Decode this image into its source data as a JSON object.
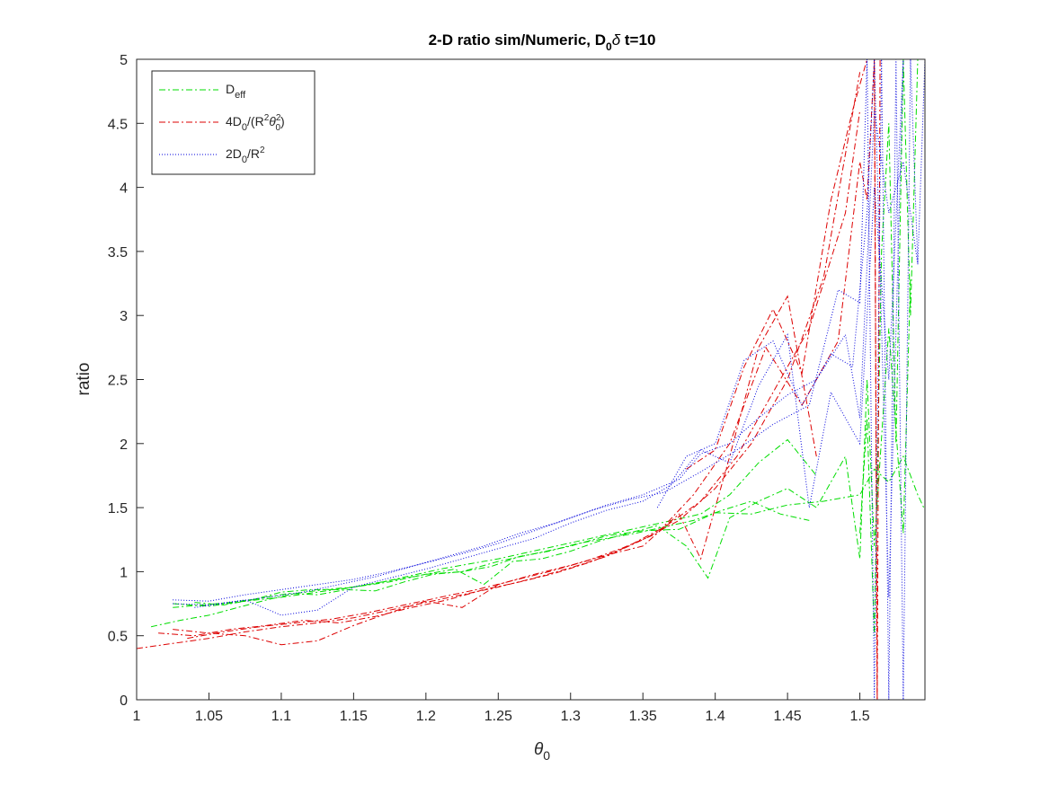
{
  "chart_data": {
    "type": "line",
    "title": {
      "main": "2-D ratio sim/Numeric, D",
      "sub": "0",
      "suffix_symbol": "δ",
      "suffix_text": " t=10"
    },
    "xlabel": {
      "symbol": "θ",
      "sub": "0"
    },
    "ylabel": "ratio",
    "xlim": [
      1,
      1.545
    ],
    "ylim": [
      0,
      5
    ],
    "xticks": [
      "1",
      "1.05",
      "1.1",
      "1.15",
      "1.2",
      "1.25",
      "1.3",
      "1.35",
      "1.4",
      "1.45",
      "1.5"
    ],
    "yticks": [
      "0",
      "0.5",
      "1",
      "1.5",
      "2",
      "2.5",
      "3",
      "3.5",
      "4",
      "4.5",
      "5"
    ],
    "legend_position": "top-left",
    "grid": false,
    "legend": [
      {
        "label_main": "D",
        "label_sub": "eff",
        "color": "#00dd00",
        "dash": "dashdot"
      },
      {
        "label_parts": [
          "4D",
          "0",
          "/(R",
          "2",
          "θ",
          "2",
          "0",
          ")"
        ],
        "color": "#dd0000",
        "dash": "dashdot"
      },
      {
        "label_parts": [
          "2D",
          "0",
          "/R",
          "2"
        ],
        "color": "#0000dd",
        "dash": "dotted"
      }
    ],
    "series": [
      {
        "group": "D_eff",
        "color": "#00dd00",
        "dash": "dashdot",
        "x": [
          1.01,
          1.03,
          1.05,
          1.07,
          1.09,
          1.11,
          1.13,
          1.15,
          1.17,
          1.19,
          1.21,
          1.23,
          1.25,
          1.27,
          1.29,
          1.31,
          1.33,
          1.35,
          1.37,
          1.39,
          1.41,
          1.43,
          1.45,
          1.47
        ],
        "y": [
          0.57,
          0.62,
          0.66,
          0.72,
          0.78,
          0.83,
          0.86,
          0.88,
          0.92,
          0.97,
          1.02,
          1.06,
          1.1,
          1.15,
          1.2,
          1.25,
          1.3,
          1.35,
          1.4,
          1.45,
          1.6,
          1.85,
          2.03,
          1.75
        ]
      },
      {
        "group": "D_eff",
        "color": "#00dd00",
        "dash": "dashdot",
        "x": [
          1.025,
          1.045,
          1.065,
          1.085,
          1.105,
          1.125,
          1.145,
          1.165,
          1.185,
          1.205,
          1.225,
          1.245,
          1.265,
          1.285,
          1.305,
          1.325,
          1.345,
          1.365,
          1.385,
          1.405,
          1.425,
          1.445,
          1.465
        ],
        "y": [
          0.72,
          0.74,
          0.76,
          0.79,
          0.83,
          0.82,
          0.86,
          0.85,
          0.92,
          0.98,
          1.0,
          1.04,
          1.12,
          1.16,
          1.22,
          1.26,
          1.3,
          1.35,
          1.4,
          1.48,
          1.55,
          1.45,
          1.4
        ]
      },
      {
        "group": "D_eff",
        "color": "#00dd00",
        "dash": "dashdot",
        "x": [
          1.025,
          1.05,
          1.075,
          1.1,
          1.125,
          1.15,
          1.175,
          1.2,
          1.225,
          1.25,
          1.275,
          1.3,
          1.325,
          1.35,
          1.375,
          1.4,
          1.425,
          1.45,
          1.475,
          1.5,
          1.51,
          1.52,
          1.53,
          1.54,
          1.545
        ],
        "y": [
          0.75,
          0.73,
          0.77,
          0.8,
          0.84,
          0.88,
          0.92,
          0.98,
          1.0,
          1.08,
          1.14,
          1.2,
          1.28,
          1.32,
          1.33,
          1.46,
          1.45,
          1.52,
          1.55,
          1.6,
          1.8,
          1.7,
          1.9,
          1.6,
          1.48
        ]
      },
      {
        "group": "D_eff",
        "color": "#00dd00",
        "dash": "dashdot",
        "x": [
          1.04,
          1.06,
          1.08,
          1.1,
          1.12,
          1.14,
          1.16,
          1.18,
          1.2,
          1.22,
          1.24,
          1.26,
          1.28,
          1.3,
          1.32,
          1.34,
          1.36,
          1.38,
          1.395,
          1.41,
          1.43,
          1.45,
          1.47,
          1.49,
          1.5,
          1.505,
          1.51,
          1.52,
          1.53,
          1.535
        ],
        "y": [
          0.76,
          0.74,
          0.78,
          0.84,
          0.86,
          0.86,
          0.9,
          0.94,
          0.98,
          1.02,
          0.9,
          1.08,
          1.1,
          1.16,
          1.24,
          1.3,
          1.36,
          1.2,
          0.95,
          1.42,
          1.55,
          1.65,
          1.5,
          1.9,
          1.1,
          2.5,
          1.2,
          2.9,
          1.3,
          3.3
        ]
      },
      {
        "group": "D_eff",
        "color": "#00dd00",
        "dash": "dashdot",
        "x": [
          1.5,
          1.505,
          1.51,
          1.515,
          1.52,
          1.525,
          1.53,
          1.535,
          1.54
        ],
        "y": [
          1.3,
          2.2,
          0.5,
          3.5,
          4.5,
          2.0,
          5.0,
          3.0,
          5.0
        ]
      },
      {
        "group": "4D0/(R2theta02)",
        "color": "#dd0000",
        "dash": "dashdot",
        "x": [
          1.0,
          1.025,
          1.05,
          1.075,
          1.1,
          1.125,
          1.15,
          1.175,
          1.2,
          1.225,
          1.25,
          1.275,
          1.3,
          1.325,
          1.35,
          1.375,
          1.4,
          1.425,
          1.45,
          1.475,
          1.5
        ],
        "y": [
          0.4,
          0.44,
          0.48,
          0.53,
          0.57,
          0.6,
          0.64,
          0.7,
          0.76,
          0.82,
          0.88,
          0.95,
          1.03,
          1.12,
          1.25,
          1.4,
          1.65,
          2.0,
          2.5,
          3.3,
          4.9
        ]
      },
      {
        "group": "4D0/(R2theta02)",
        "color": "#dd0000",
        "dash": "dashdot",
        "x": [
          1.015,
          1.04,
          1.065,
          1.09,
          1.115,
          1.14,
          1.165,
          1.19,
          1.215,
          1.24,
          1.265,
          1.29,
          1.315,
          1.34,
          1.365,
          1.39,
          1.415,
          1.44,
          1.465,
          1.49,
          1.5
        ],
        "y": [
          0.52,
          0.5,
          0.55,
          0.58,
          0.62,
          0.6,
          0.65,
          0.72,
          0.78,
          0.86,
          0.92,
          0.99,
          1.08,
          1.2,
          1.35,
          1.55,
          1.9,
          2.4,
          2.9,
          3.8,
          4.6
        ]
      },
      {
        "group": "4D0/(R2theta02)",
        "color": "#dd0000",
        "dash": "dashdot",
        "x": [
          1.025,
          1.05,
          1.075,
          1.1,
          1.125,
          1.15,
          1.175,
          1.2,
          1.225,
          1.25,
          1.275,
          1.3,
          1.325,
          1.35,
          1.375,
          1.39,
          1.41,
          1.43,
          1.45,
          1.47
        ],
        "y": [
          0.55,
          0.52,
          0.5,
          0.43,
          0.46,
          0.58,
          0.68,
          0.77,
          0.72,
          0.9,
          0.98,
          1.05,
          1.13,
          1.2,
          1.45,
          1.1,
          1.9,
          2.75,
          3.15,
          1.9
        ]
      },
      {
        "group": "4D0/(R2theta02)",
        "color": "#dd0000",
        "dash": "dashdot",
        "x": [
          1.035,
          1.06,
          1.085,
          1.11,
          1.135,
          1.16,
          1.185,
          1.21,
          1.235,
          1.26,
          1.285,
          1.31,
          1.335,
          1.36,
          1.385,
          1.41,
          1.435,
          1.46,
          1.485,
          1.5,
          1.505,
          1.51,
          1.512
        ],
        "y": [
          0.48,
          0.53,
          0.57,
          0.6,
          0.63,
          0.68,
          0.74,
          0.8,
          0.86,
          0.93,
          1.0,
          1.08,
          1.18,
          1.3,
          1.6,
          2.0,
          2.75,
          2.3,
          2.8,
          4.2,
          3.9,
          5.0,
          0.0
        ]
      },
      {
        "group": "4D0/(R2theta02)",
        "color": "#dd0000",
        "dash": "dashdot",
        "x": [
          1.38,
          1.4,
          1.42,
          1.44,
          1.46,
          1.48,
          1.495,
          1.505,
          1.51,
          1.512,
          1.514
        ],
        "y": [
          1.8,
          1.95,
          2.6,
          3.05,
          2.55,
          3.9,
          4.6,
          5.0,
          5.0,
          0.0,
          5.0
        ]
      },
      {
        "group": "2D0/R2",
        "color": "#0000dd",
        "dash": "dotted",
        "x": [
          1.025,
          1.05,
          1.075,
          1.1,
          1.125,
          1.15,
          1.175,
          1.2,
          1.225,
          1.25,
          1.275,
          1.3,
          1.325,
          1.35,
          1.375,
          1.39,
          1.41,
          1.43,
          1.45,
          1.47,
          1.49,
          1.5,
          1.51,
          1.52,
          1.53,
          1.54,
          1.545
        ],
        "y": [
          0.78,
          0.77,
          0.82,
          0.86,
          0.9,
          0.94,
          1.0,
          1.07,
          1.14,
          1.22,
          1.32,
          1.42,
          1.52,
          1.6,
          1.72,
          1.92,
          2.0,
          2.2,
          2.38,
          2.5,
          2.85,
          2.2,
          4.6,
          3.8,
          4.2,
          3.4,
          5.0
        ]
      },
      {
        "group": "2D0/R2",
        "color": "#0000dd",
        "dash": "dotted",
        "x": [
          1.025,
          1.05,
          1.075,
          1.1,
          1.125,
          1.15,
          1.175,
          1.2,
          1.225,
          1.25,
          1.275,
          1.3,
          1.325,
          1.35,
          1.37,
          1.39,
          1.41,
          1.43,
          1.45,
          1.465,
          1.48,
          1.5,
          1.51,
          1.52,
          1.53
        ],
        "y": [
          0.75,
          0.74,
          0.78,
          0.66,
          0.7,
          0.88,
          0.95,
          1.02,
          1.1,
          1.18,
          1.26,
          1.38,
          1.48,
          1.55,
          1.68,
          1.95,
          1.85,
          2.45,
          2.85,
          1.5,
          2.4,
          2.0,
          4.0,
          2.5,
          5.0
        ]
      },
      {
        "group": "2D0/R2",
        "color": "#0000dd",
        "dash": "dotted",
        "x": [
          1.04,
          1.065,
          1.09,
          1.115,
          1.14,
          1.165,
          1.19,
          1.215,
          1.24,
          1.265,
          1.29,
          1.315,
          1.34,
          1.365,
          1.39,
          1.415,
          1.44,
          1.465,
          1.485,
          1.5,
          1.505,
          1.51,
          1.515,
          1.52,
          1.525,
          1.53,
          1.535,
          1.54
        ],
        "y": [
          0.72,
          0.76,
          0.8,
          0.84,
          0.9,
          0.96,
          1.04,
          1.12,
          1.2,
          1.3,
          1.38,
          1.48,
          1.56,
          1.62,
          1.78,
          1.95,
          2.15,
          2.3,
          3.2,
          3.1,
          5.0,
          0.0,
          5.0,
          0.0,
          5.0,
          0.0,
          5.0,
          3.4
        ]
      },
      {
        "group": "2D0/R2",
        "color": "#0000dd",
        "dash": "dotted",
        "x": [
          1.36,
          1.38,
          1.4,
          1.42,
          1.44,
          1.46,
          1.48,
          1.495,
          1.505,
          1.51,
          1.52,
          1.53,
          1.54
        ],
        "y": [
          1.5,
          1.9,
          2.0,
          2.65,
          2.8,
          2.3,
          2.7,
          2.6,
          3.8,
          5.0,
          0.8,
          5.0,
          5.0
        ]
      }
    ]
  }
}
